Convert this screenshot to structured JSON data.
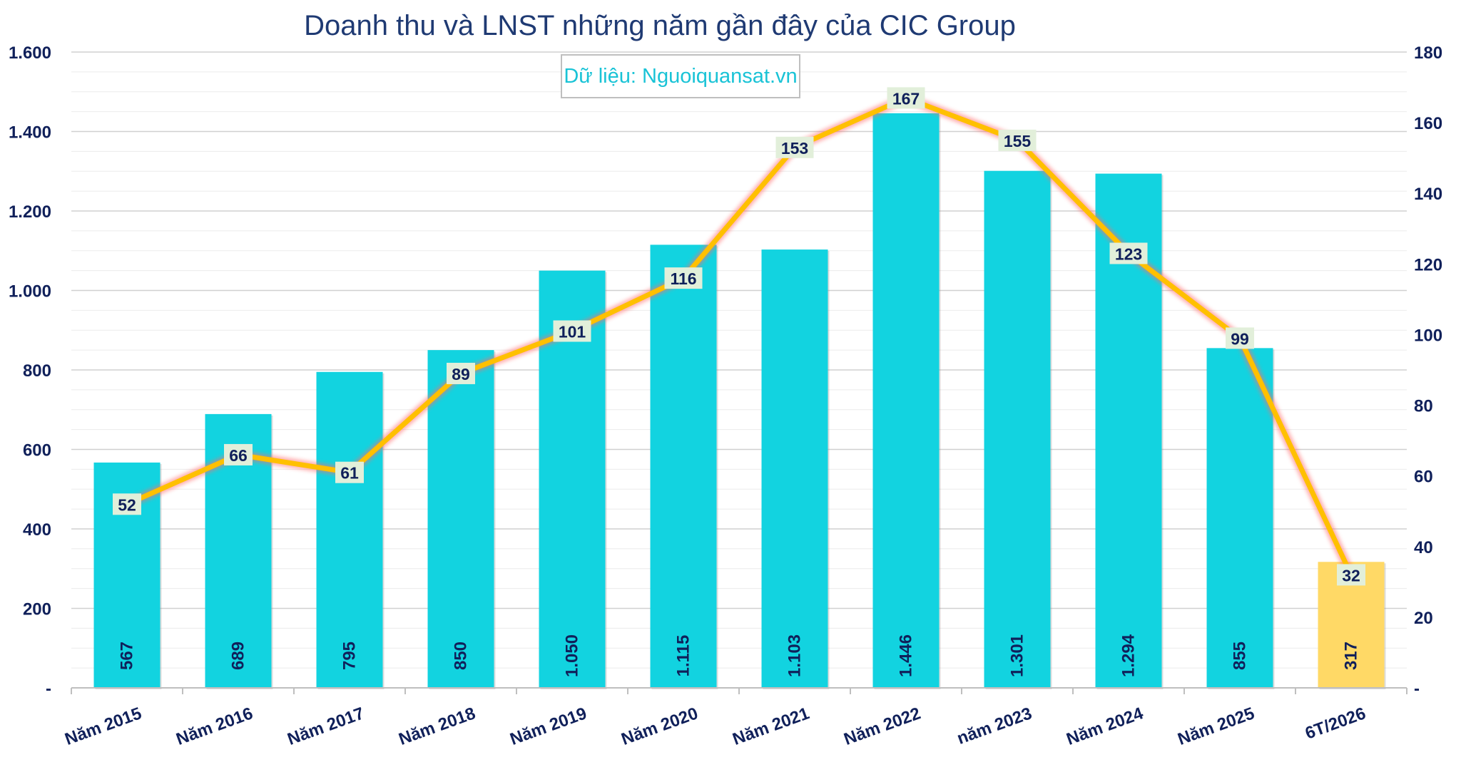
{
  "chart_data": {
    "type": "bar+line",
    "title": "Doanh thu và LNST những năm gần đây của CIC Group",
    "source_note": "Dữ liệu: Nguoiquansat.vn",
    "categories": [
      "Năm 2015",
      "Năm 2016",
      "Năm 2017",
      "Năm 2018",
      "Năm 2019",
      "Năm 2020",
      "Năm 2021",
      "Năm 2022",
      "năm 2023",
      "Năm 2024",
      "Năm 2025",
      "6T/2026"
    ],
    "bars": {
      "values": [
        567,
        689,
        795,
        850,
        1050,
        1115,
        1103,
        1446,
        1301,
        1294,
        855,
        317
      ],
      "labels": [
        "567",
        "689",
        "795",
        "850",
        "1.050",
        "1.115",
        "1.103",
        "1.446",
        "1.301",
        "1.294",
        "855",
        "317"
      ],
      "color": "#12d3e0",
      "highlight_color": "#ffd966",
      "highlight_index": 11,
      "axis": "left"
    },
    "line": {
      "values": [
        52,
        66,
        61,
        89,
        101,
        116,
        153,
        167,
        155,
        123,
        99,
        32
      ],
      "color": "#ffc000",
      "glow_color": "#ff6b6b",
      "axis": "right"
    },
    "left_axis": {
      "ylim": [
        0,
        1600
      ],
      "ticks": [
        "-",
        "200",
        "400",
        "600",
        "800",
        "1.000",
        "1.200",
        "1.400",
        "1.600"
      ]
    },
    "right_axis": {
      "ylim": [
        0,
        180
      ],
      "ticks": [
        "-",
        "20",
        "40",
        "60",
        "80",
        "100",
        "120",
        "140",
        "160",
        "180"
      ]
    },
    "grid": true,
    "legend": "none",
    "colors": {
      "title": "#1f3a73",
      "axis_text": "#10205a",
      "source_text": "#19c3d6",
      "data_label_bg": "#e2efda",
      "data_label_text": "#10205a"
    }
  }
}
